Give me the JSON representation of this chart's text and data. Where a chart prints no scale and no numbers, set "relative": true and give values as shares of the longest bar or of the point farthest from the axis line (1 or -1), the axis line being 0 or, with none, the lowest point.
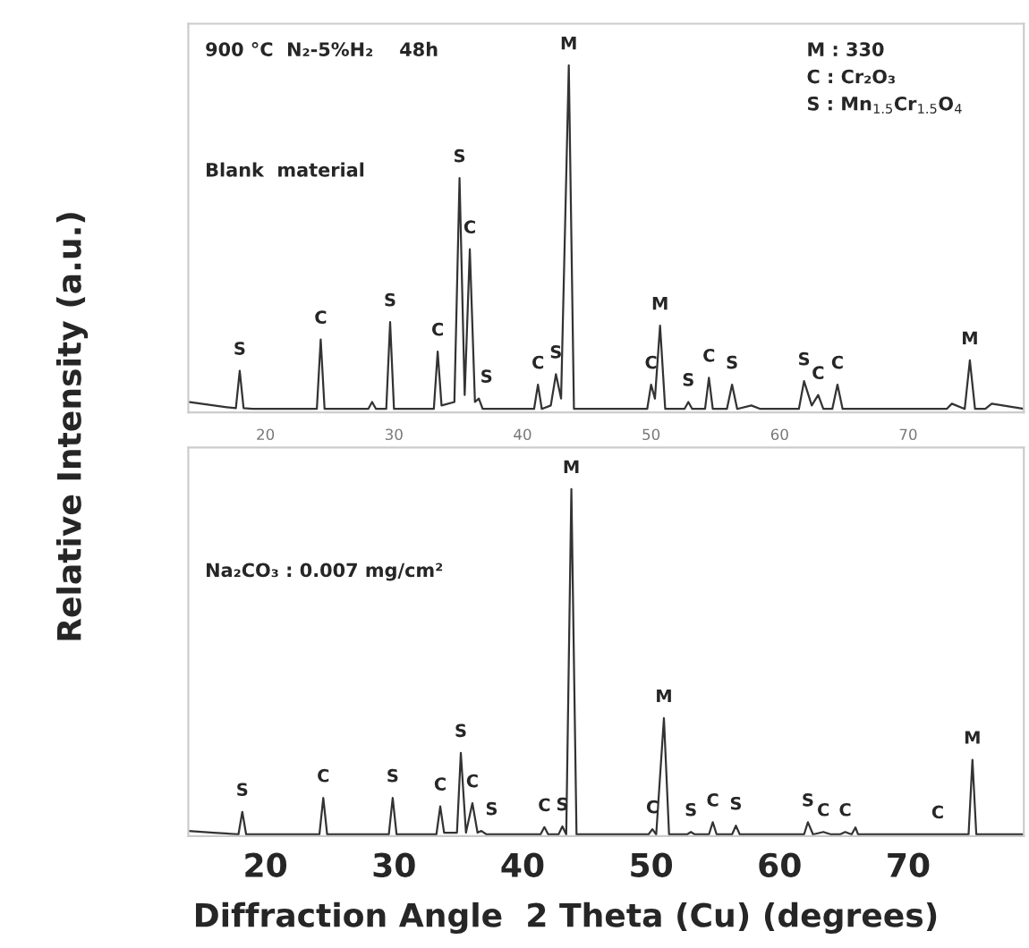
{
  "chart_data": [
    {
      "type": "line",
      "relative": true,
      "tick_labels": "x",
      "xlim": [
        14,
        79
      ],
      "xticks": [
        20,
        30,
        40,
        50,
        60,
        70
      ],
      "ylabel": "Relative Intensity (a.u.)",
      "grid": false,
      "marker": "none",
      "line_style": "solid",
      "series": [
        {
          "color": "#333333",
          "x": [
            14,
            15,
            16,
            17,
            17.7,
            18.0,
            18.3,
            19,
            21,
            23,
            24.0,
            24.3,
            24.6,
            26,
            28.0,
            28.3,
            28.6,
            29.4,
            29.7,
            30.0,
            31,
            33.1,
            33.4,
            33.7,
            34.7,
            35.1,
            35.5,
            35.9,
            36.3,
            36.6,
            36.9,
            38,
            40.9,
            41.2,
            41.5,
            42.2,
            42.6,
            43.0,
            43.6,
            44.0,
            45,
            47,
            49.7,
            50.0,
            50.3,
            50.7,
            51.1,
            52.6,
            52.9,
            53.2,
            54.2,
            54.5,
            54.8,
            55.9,
            56.3,
            56.7,
            57.8,
            58.5,
            61.5,
            61.9,
            62.5,
            63.0,
            63.4,
            64.1,
            64.5,
            64.9,
            66,
            70,
            73.0,
            73.4,
            74.4,
            74.8,
            75.2,
            76.0,
            76.5,
            79
          ],
          "values": [
            0.03,
            0.025,
            0.02,
            0.015,
            0.012,
            0.12,
            0.012,
            0.01,
            0.01,
            0.01,
            0.01,
            0.21,
            0.01,
            0.01,
            0.01,
            0.03,
            0.01,
            0.01,
            0.26,
            0.01,
            0.01,
            0.01,
            0.175,
            0.02,
            0.03,
            0.675,
            0.05,
            0.47,
            0.03,
            0.04,
            0.01,
            0.01,
            0.01,
            0.08,
            0.01,
            0.02,
            0.11,
            0.04,
            1.0,
            0.01,
            0.01,
            0.01,
            0.01,
            0.08,
            0.04,
            0.25,
            0.01,
            0.01,
            0.03,
            0.01,
            0.01,
            0.1,
            0.01,
            0.01,
            0.08,
            0.01,
            0.02,
            0.01,
            0.01,
            0.09,
            0.02,
            0.05,
            0.01,
            0.01,
            0.08,
            0.01,
            0.01,
            0.01,
            0.01,
            0.025,
            0.01,
            0.15,
            0.01,
            0.01,
            0.025,
            0.01
          ]
        }
      ],
      "annotations": [
        "900 °C  N₂-5%H₂    48h",
        "Blank  material",
        "M : 330",
        "C : Cr₂O₃",
        "S : Mn$_{1.5}$Cr$_{1.5}$O$_{4}$",
        {
          "text": "S",
          "x": 18.0,
          "y": 0.12
        },
        {
          "text": "C",
          "x": 24.3,
          "y": 0.21
        },
        {
          "text": "S",
          "x": 29.7,
          "y": 0.26
        },
        {
          "text": "C",
          "x": 33.4,
          "y": 0.175
        },
        {
          "text": "S",
          "x": 35.1,
          "y": 0.675
        },
        {
          "text": "C",
          "x": 35.9,
          "y": 0.47
        },
        {
          "text": "S",
          "x": 37.2,
          "y": 0.04
        },
        {
          "text": "C",
          "x": 41.2,
          "y": 0.08
        },
        {
          "text": "S",
          "x": 42.6,
          "y": 0.11
        },
        {
          "text": "M",
          "x": 43.6,
          "y": 1.0
        },
        {
          "text": "C",
          "x": 50.0,
          "y": 0.08
        },
        {
          "text": "M",
          "x": 50.7,
          "y": 0.25
        },
        {
          "text": "S",
          "x": 52.9,
          "y": 0.03
        },
        {
          "text": "C",
          "x": 54.5,
          "y": 0.1
        },
        {
          "text": "S",
          "x": 56.3,
          "y": 0.08
        },
        {
          "text": "S",
          "x": 61.9,
          "y": 0.09
        },
        {
          "text": "C",
          "x": 63.0,
          "y": 0.05
        },
        {
          "text": "C",
          "x": 64.5,
          "y": 0.08
        },
        {
          "text": "M",
          "x": 74.8,
          "y": 0.15
        }
      ]
    },
    {
      "type": "line",
      "relative": true,
      "tick_labels": "x",
      "xlim": [
        14,
        79
      ],
      "xticks": [
        20,
        30,
        40,
        50,
        60,
        70
      ],
      "xlabel": "Diffraction Angle  2 Theta (Cu) (degrees)",
      "grid": false,
      "marker": "none",
      "line_style": "solid",
      "series": [
        {
          "color": "#333333",
          "x": [
            14,
            16,
            17.9,
            18.2,
            18.5,
            21,
            24.2,
            24.5,
            24.8,
            27,
            29.6,
            29.9,
            30.2,
            32,
            33.3,
            33.6,
            33.9,
            34.9,
            35.2,
            35.6,
            36.1,
            36.5,
            36.8,
            37.2,
            40,
            41.4,
            41.7,
            42.0,
            42.8,
            43.1,
            43.4,
            43.8,
            44.2,
            46,
            49.8,
            50.1,
            50.4,
            51.0,
            51.4,
            52.8,
            53.1,
            53.4,
            54.5,
            54.8,
            55.1,
            56.3,
            56.6,
            56.9,
            59,
            61.9,
            62.2,
            62.6,
            63.4,
            64,
            64.7,
            65.1,
            65.6,
            65.9,
            66.1,
            70,
            74.7,
            75.0,
            75.3,
            79
          ],
          "values": [
            0.015,
            0.01,
            0.005,
            0.07,
            0.005,
            0.005,
            0.005,
            0.11,
            0.005,
            0.005,
            0.005,
            0.11,
            0.005,
            0.005,
            0.005,
            0.086,
            0.01,
            0.01,
            0.24,
            0.01,
            0.095,
            0.01,
            0.015,
            0.005,
            0.005,
            0.005,
            0.026,
            0.005,
            0.005,
            0.028,
            0.005,
            1.0,
            0.005,
            0.005,
            0.005,
            0.02,
            0.005,
            0.34,
            0.005,
            0.005,
            0.012,
            0.005,
            0.005,
            0.04,
            0.005,
            0.005,
            0.03,
            0.005,
            0.005,
            0.005,
            0.04,
            0.005,
            0.012,
            0.005,
            0.005,
            0.012,
            0.005,
            0.025,
            0.005,
            0.005,
            0.005,
            0.22,
            0.005,
            0.005
          ]
        }
      ],
      "annotations": [
        "Na₂CO₃ : 0.007 mg/cm²",
        {
          "text": "S",
          "x": 18.2,
          "y": 0.07
        },
        {
          "text": "C",
          "x": 24.5,
          "y": 0.11
        },
        {
          "text": "S",
          "x": 29.9,
          "y": 0.11
        },
        {
          "text": "C",
          "x": 33.6,
          "y": 0.086
        },
        {
          "text": "S",
          "x": 35.2,
          "y": 0.24
        },
        {
          "text": "C",
          "x": 36.1,
          "y": 0.095
        },
        {
          "text": "S",
          "x": 37.6,
          "y": 0.015
        },
        {
          "text": "C",
          "x": 41.7,
          "y": 0.026
        },
        {
          "text": "S",
          "x": 43.1,
          "y": 0.028
        },
        {
          "text": "M",
          "x": 43.8,
          "y": 1.0
        },
        {
          "text": "C",
          "x": 50.1,
          "y": 0.02
        },
        {
          "text": "M",
          "x": 51.0,
          "y": 0.34
        },
        {
          "text": "S",
          "x": 53.1,
          "y": 0.012
        },
        {
          "text": "C",
          "x": 54.8,
          "y": 0.04
        },
        {
          "text": "S",
          "x": 56.6,
          "y": 0.03
        },
        {
          "text": "S",
          "x": 62.2,
          "y": 0.04
        },
        {
          "text": "C",
          "x": 63.4,
          "y": 0.012
        },
        {
          "text": "C",
          "x": 65.1,
          "y": 0.012
        },
        {
          "text": "C",
          "x": 72.3,
          "y": 0.005
        },
        {
          "text": "M",
          "x": 75.0,
          "y": 0.22
        }
      ]
    }
  ]
}
